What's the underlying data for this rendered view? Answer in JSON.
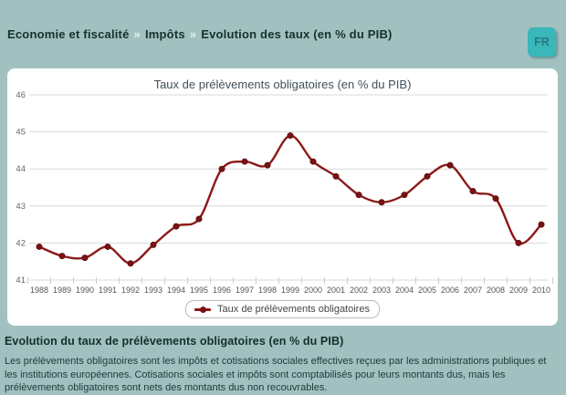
{
  "page": {
    "background": "#a1c1c1"
  },
  "breadcrumb": {
    "separator": "»",
    "items": [
      {
        "label": "Economie et fiscalité"
      },
      {
        "label": "Impôts"
      },
      {
        "label": "Evolution des taux (en % du PIB)"
      }
    ]
  },
  "language_button": {
    "label": "FR"
  },
  "chart_data": {
    "type": "line",
    "title": "Taux de prélèvements obligatoires (en % du PIB)",
    "categories": [
      1988,
      1989,
      1990,
      1991,
      1992,
      1993,
      1994,
      1995,
      1996,
      1997,
      1998,
      1999,
      2000,
      2001,
      2002,
      2003,
      2004,
      2005,
      2006,
      2007,
      2008,
      2009,
      2010
    ],
    "series": [
      {
        "name": "Taux de prélèvements obligatoires",
        "color": "#8b1a1a",
        "marker_color": "#7a1212",
        "values": [
          41.9,
          41.65,
          41.6,
          41.9,
          41.45,
          41.95,
          42.45,
          42.65,
          44.0,
          44.2,
          44.1,
          44.9,
          44.2,
          43.8,
          43.3,
          43.1,
          43.3,
          43.8,
          44.1,
          43.4,
          43.2,
          42.0,
          42.5
        ]
      }
    ],
    "ylim": [
      41,
      46
    ],
    "yticks": [
      41,
      42,
      43,
      44,
      45,
      46
    ],
    "grid": true,
    "legend_position": "bottom",
    "gridline_color": "#d9d9d9",
    "tick_label_color": "#666666"
  },
  "footer": {
    "heading": "Evolution du taux de prélèvements obligatoires (en % du PIB)",
    "description": "Les prélèvements obligatoires sont les impôts et cotisations sociales effectives reçues par les administrations publiques et les institutions européennes. Cotisations sociales et impôts sont comptabilisés pour leurs montants dus, mais les prélèvements obligatoires sont nets des montants dus non recouvrables."
  }
}
